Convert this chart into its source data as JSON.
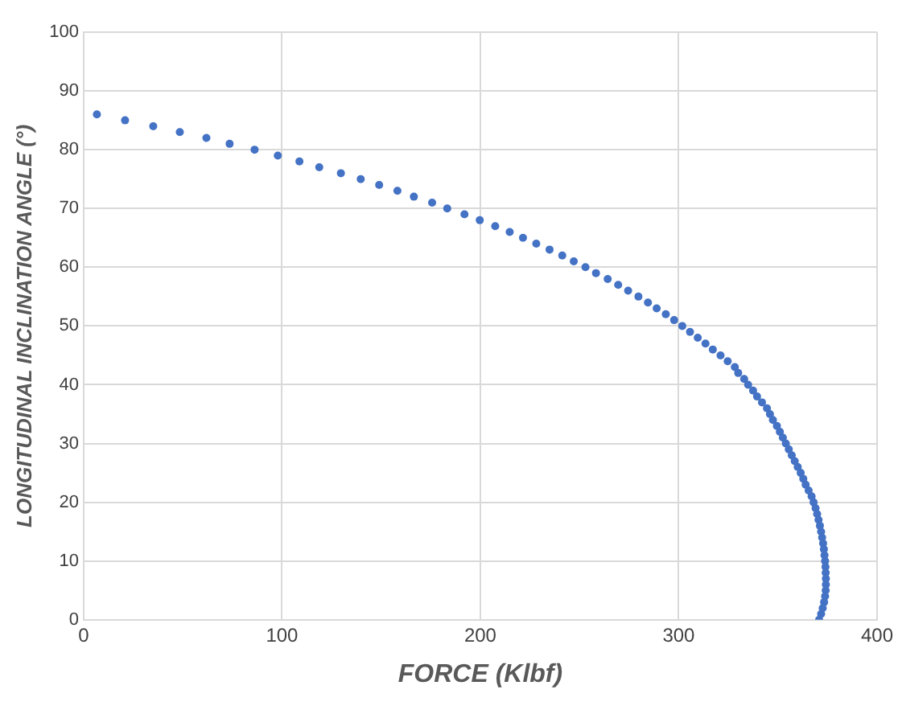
{
  "chart_data": {
    "type": "scatter",
    "xlabel": "FORCE (Klbf)",
    "ylabel": "LONGITUDINAL INCLINATION ANGLE (°)",
    "xlim": [
      0,
      400
    ],
    "xticks": [
      0,
      100,
      200,
      300,
      400
    ],
    "ylim": [
      0,
      100
    ],
    "yticks": [
      0,
      10,
      20,
      30,
      40,
      50,
      60,
      70,
      80,
      90,
      100
    ],
    "grid": true,
    "legend": false,
    "marker": "circle",
    "series": [
      {
        "color": "#4472c4",
        "x": [
          6.7,
          20.9,
          35.1,
          48.5,
          61.9,
          73.6,
          86.2,
          97.9,
          108.8,
          118.8,
          129.7,
          139.7,
          149,
          158.2,
          166.5,
          175.7,
          183.3,
          192,
          199.7,
          207.5,
          214.8,
          221.5,
          228.2,
          234.9,
          241.3,
          247.1,
          253,
          258.3,
          264.2,
          269.5,
          274.5,
          279.7,
          284.5,
          288.9,
          293.5,
          297.7,
          301.8,
          305.7,
          309.6,
          313.5,
          317.2,
          321.1,
          324.7,
          328.3,
          330,
          333,
          335,
          337.5,
          339.5,
          342,
          344.5,
          346,
          347.5,
          349.5,
          351,
          352.5,
          354,
          355.5,
          357,
          358.5,
          360,
          361.5,
          362.8,
          364,
          365.5,
          367,
          368,
          369,
          369.8,
          370.5,
          371.2,
          371.8,
          372.3,
          372.8,
          373.2,
          373.5,
          373.8,
          374,
          374.1,
          374.2,
          374.2,
          374.1,
          373.8,
          373.3,
          372.6,
          371.8,
          370.8
        ],
        "values": [
          86,
          85,
          84,
          83,
          82,
          81,
          80,
          79,
          78,
          77,
          76,
          75,
          74,
          73,
          72,
          71,
          70,
          69,
          68,
          67,
          66,
          65,
          64,
          63,
          62,
          61,
          60,
          59,
          58,
          57,
          56,
          55,
          54,
          53,
          52,
          51,
          50,
          49,
          48,
          47,
          46,
          45,
          44,
          43,
          42,
          41,
          40,
          39,
          38,
          37,
          36,
          35,
          34,
          33,
          32,
          31,
          30,
          29,
          28,
          27,
          26,
          25,
          24,
          23,
          22,
          21,
          20,
          19,
          18,
          17,
          16,
          15,
          14,
          13,
          12,
          11,
          10,
          9,
          8,
          7,
          6,
          5,
          4,
          3,
          2,
          1,
          0
        ]
      }
    ]
  }
}
